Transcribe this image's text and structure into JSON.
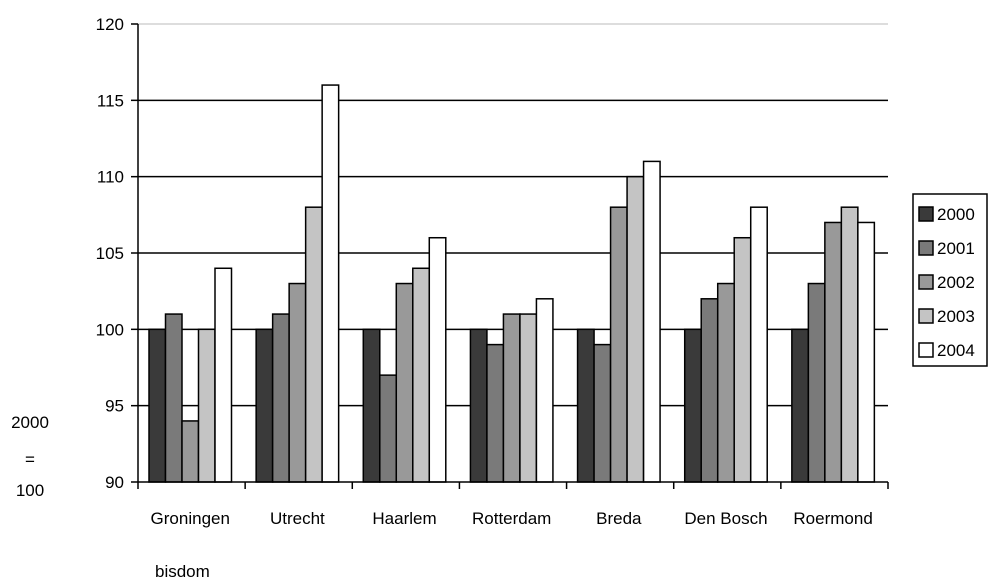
{
  "chart_data": {
    "type": "bar",
    "categories": [
      "Groningen",
      "Utrecht",
      "Haarlem",
      "Rotterdam",
      "Breda",
      "Den Bosch",
      "Roermond"
    ],
    "series": [
      {
        "name": "2000",
        "values": [
          100,
          100,
          100,
          100,
          100,
          100,
          100
        ],
        "color": "#3a3a3a"
      },
      {
        "name": "2001",
        "values": [
          101,
          101,
          97,
          99,
          99,
          102,
          103
        ],
        "color": "#7a7a7a"
      },
      {
        "name": "2002",
        "values": [
          94,
          103,
          103,
          101,
          108,
          103,
          107
        ],
        "color": "#999999"
      },
      {
        "name": "2003",
        "values": [
          100,
          108,
          104,
          101,
          110,
          106,
          108
        ],
        "color": "#c4c4c4"
      },
      {
        "name": "2004",
        "values": [
          104,
          116,
          106,
          102,
          111,
          108,
          107
        ],
        "color": "#ffffff"
      }
    ],
    "ylim": [
      90,
      120
    ],
    "yticks": [
      "90",
      "95",
      "100",
      "105",
      "110",
      "115",
      "120"
    ],
    "xlabel": "bisdom",
    "ylabel_lines": [
      "2000",
      "=",
      "100"
    ],
    "grid": true,
    "legend_position": "right"
  }
}
